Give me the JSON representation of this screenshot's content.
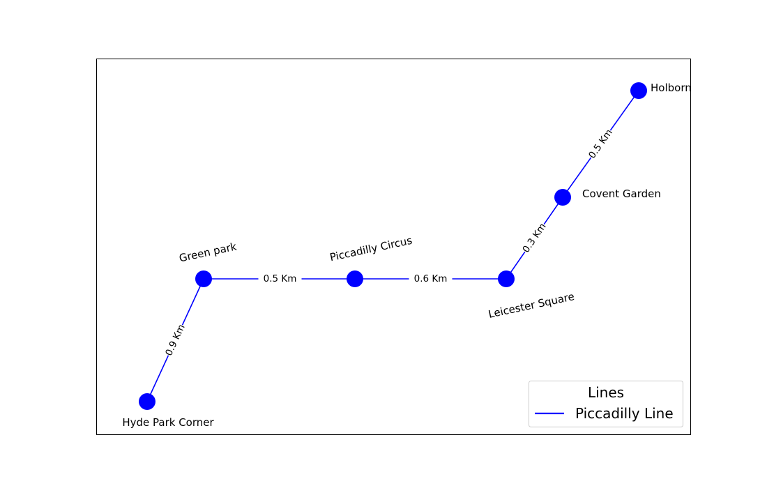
{
  "line_color": "#0000ff",
  "node_color": "#0000ff",
  "stations": [
    {
      "id": "hyde",
      "name": "Hyde Park Corner"
    },
    {
      "id": "green",
      "name": "Green park"
    },
    {
      "id": "piccadilly",
      "name": "Piccadilly Circus"
    },
    {
      "id": "leicester",
      "name": "Leicester Square"
    },
    {
      "id": "covent",
      "name": "Covent Garden"
    },
    {
      "id": "holborn",
      "name": "Holborn"
    }
  ],
  "connections": [
    {
      "from": "hyde",
      "to": "green",
      "label": "0.9 Km"
    },
    {
      "from": "green",
      "to": "piccadilly",
      "label": "0.5 Km"
    },
    {
      "from": "piccadilly",
      "to": "leicester",
      "label": "0.6 Km"
    },
    {
      "from": "leicester",
      "to": "covent",
      "label": "0.3 Km"
    },
    {
      "from": "covent",
      "to": "holborn",
      "label": "0.5 Km"
    }
  ],
  "legend": {
    "title": "Lines",
    "entries": [
      {
        "label": "Piccadilly Line",
        "color": "#0000ff"
      }
    ]
  }
}
